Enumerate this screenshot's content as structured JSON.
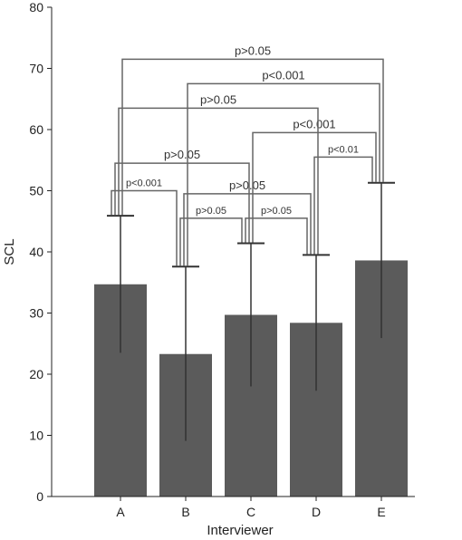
{
  "chart_data": {
    "type": "bar",
    "xlabel": "Interviewer",
    "ylabel": "SCL",
    "ylim": [
      0,
      80
    ],
    "yticks": [
      0,
      10,
      20,
      30,
      40,
      50,
      60,
      70,
      80
    ],
    "categories": [
      "A",
      "B",
      "C",
      "D",
      "E"
    ],
    "values": [
      34.7,
      23.3,
      29.7,
      28.4,
      38.6
    ],
    "error_lower": [
      23.5,
      9.1,
      18.0,
      17.3,
      25.9
    ],
    "error_upper": [
      45.9,
      37.6,
      41.4,
      39.5,
      51.3
    ],
    "bar_color": "#5b5b5b",
    "comparisons": [
      {
        "from": "A",
        "to": "B",
        "label": "p<0.001",
        "level": 50.0
      },
      {
        "from": "B",
        "to": "C",
        "label": "p>0.05",
        "level": 45.5
      },
      {
        "from": "C",
        "to": "D",
        "label": "p>0.05",
        "level": 45.5
      },
      {
        "from": "B",
        "to": "D",
        "label": "p>0.05",
        "level": 49.5
      },
      {
        "from": "D",
        "to": "E",
        "label": "p<0.01",
        "level": 55.5
      },
      {
        "from": "A",
        "to": "C",
        "label": "p>0.05",
        "level": 54.5
      },
      {
        "from": "C",
        "to": "E",
        "label": "p<0.001",
        "level": 59.5
      },
      {
        "from": "A",
        "to": "D",
        "label": "p>0.05",
        "level": 63.5
      },
      {
        "from": "B",
        "to": "E",
        "label": "p<0.001",
        "level": 67.5
      },
      {
        "from": "A",
        "to": "E",
        "label": "p>0.05",
        "level": 71.5
      }
    ]
  }
}
